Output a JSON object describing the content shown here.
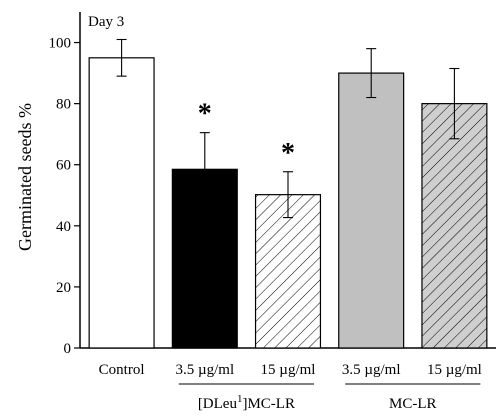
{
  "chart_data": {
    "type": "bar",
    "title": "Day 3",
    "ylabel": "Germinated seeds %",
    "ylim": [
      0,
      110
    ],
    "yticks": [
      0,
      20,
      40,
      60,
      80,
      100
    ],
    "grid": false,
    "categories": [
      "Control",
      "3.5 µg/ml",
      "15 µg/ml",
      "3.5 µg/ml",
      "15 µg/ml"
    ],
    "groups": [
      {
        "label": "[DLeu1]MC-LR",
        "label_base": "[DLeu",
        "label_sup": "1",
        "label_rest": "]MC-LR",
        "members": [
          1,
          2
        ]
      },
      {
        "label": "MC-LR",
        "members": [
          3,
          4
        ]
      }
    ],
    "values": [
      95,
      58.5,
      50.2,
      90,
      80
    ],
    "errors": [
      6,
      12,
      7.5,
      8,
      11.5
    ],
    "significance": [
      "",
      "*",
      "*",
      "",
      ""
    ],
    "fills": [
      "white",
      "black",
      "hatch",
      "gray",
      "hatch-gray"
    ],
    "colors": {
      "black": "#000000",
      "gray": "#c0c0c0",
      "hatch_line": "#000000"
    }
  }
}
